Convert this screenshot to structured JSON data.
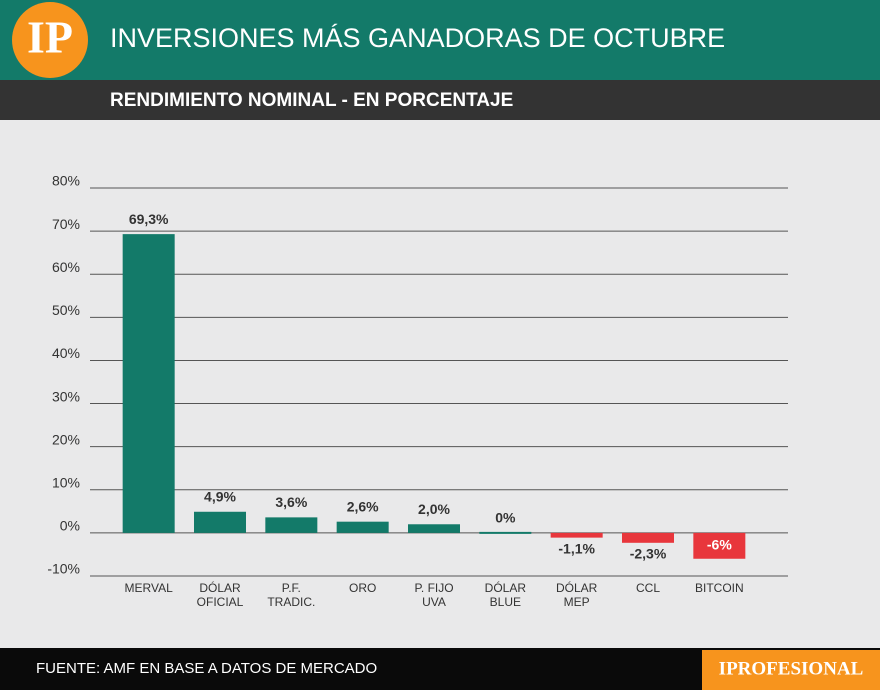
{
  "logo": "IP",
  "brand": "IPROFESIONAL",
  "source": "FUENTE: AMF EN BASE A DATOS DE MERCADO",
  "chart_data": {
    "type": "bar",
    "title": "INVERSIONES MÁS GANADORAS DE OCTUBRE",
    "subtitle": "RENDIMIENTO NOMINAL - EN PORCENTAJE",
    "categories": [
      [
        "MERVAL"
      ],
      [
        "DÓLAR",
        "OFICIAL"
      ],
      [
        "P.F.",
        "TRADIC."
      ],
      [
        "ORO"
      ],
      [
        "P. FIJO",
        "UVA"
      ],
      [
        "DÓLAR",
        "BLUE"
      ],
      [
        "DÓLAR",
        "MEP"
      ],
      [
        "CCL"
      ],
      [
        "BITCOIN"
      ]
    ],
    "values": [
      69.3,
      4.9,
      3.6,
      2.6,
      2.0,
      0,
      -1.1,
      -2.3,
      -6
    ],
    "value_labels": [
      "69,3%",
      "4,9%",
      "3,6%",
      "2,6%",
      "2,0%",
      "0%",
      "-1,1%",
      "-2,3%",
      "-6%"
    ],
    "color": "#137a69",
    "negative_color": "#e8363c",
    "ylim": [
      -10,
      80
    ],
    "yticks": [
      {
        "value": -10,
        "label": "-10%"
      },
      {
        "value": 0,
        "label": "0%"
      },
      {
        "value": 10,
        "label": "10%"
      },
      {
        "value": 20,
        "label": "20%"
      },
      {
        "value": 30,
        "label": "30%"
      },
      {
        "value": 40,
        "label": "40%"
      },
      {
        "value": 50,
        "label": "50%"
      },
      {
        "value": 60,
        "label": "60%"
      },
      {
        "value": 70,
        "label": "70%"
      },
      {
        "value": 80,
        "label": "80%"
      }
    ],
    "grid": true
  }
}
